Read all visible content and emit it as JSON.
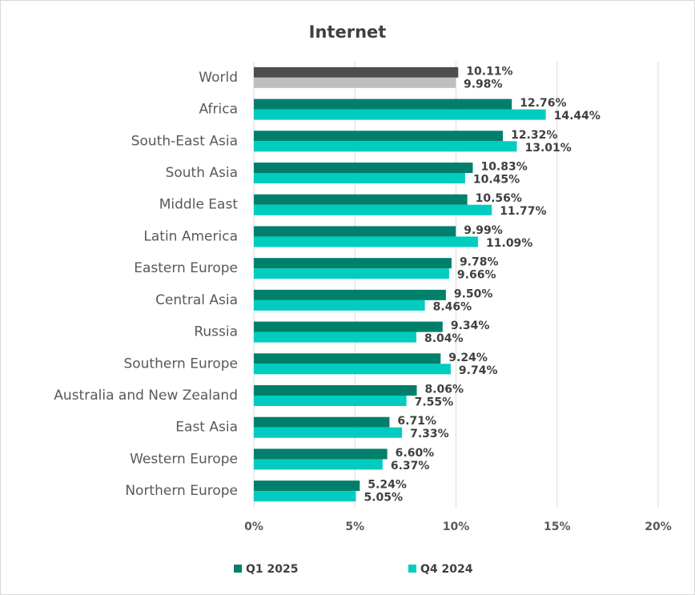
{
  "chart_data": {
    "type": "hbar",
    "title": "Internet",
    "categories": [
      "World",
      "Africa",
      "South-East Asia",
      "South Asia",
      "Middle East",
      "Latin America",
      "Eastern Europe",
      "Central Asia",
      "Russia",
      "Southern Europe",
      "Australia and New Zealand",
      "East Asia",
      "Western Europe",
      "Northern Europe"
    ],
    "series": [
      {
        "name": "Q1 2025",
        "color": "#00806b",
        "colors": [
          "#4d4d4d",
          "#00806b",
          "#00806b",
          "#00806b",
          "#00806b",
          "#00806b",
          "#00806b",
          "#00806b",
          "#00806b",
          "#00806b",
          "#00806b",
          "#00806b",
          "#00806b",
          "#00806b"
        ],
        "values": [
          10.11,
          12.76,
          12.32,
          10.83,
          10.56,
          9.99,
          9.78,
          9.5,
          9.34,
          9.24,
          8.06,
          6.71,
          6.6,
          5.24
        ],
        "value_labels": [
          "10.11%",
          "12.76%",
          "12.32%",
          "10.83%",
          "10.56%",
          "9.99%",
          "9.78%",
          "9.50%",
          "9.34%",
          "9.24%",
          "8.06%",
          "6.71%",
          "6.60%",
          "5.24%"
        ]
      },
      {
        "name": "Q4 2024",
        "color": "#00ccbf",
        "colors": [
          "#bfbfbf",
          "#00ccbf",
          "#00ccbf",
          "#00ccbf",
          "#00ccbf",
          "#00ccbf",
          "#00ccbf",
          "#00ccbf",
          "#00ccbf",
          "#00ccbf",
          "#00ccbf",
          "#00ccbf",
          "#00ccbf",
          "#00ccbf"
        ],
        "values": [
          9.98,
          14.44,
          13.01,
          10.45,
          11.77,
          11.09,
          9.66,
          8.46,
          8.04,
          9.74,
          7.55,
          7.33,
          6.37,
          5.05
        ],
        "value_labels": [
          "9.98%",
          "14.44%",
          "13.01%",
          "10.45%",
          "11.77%",
          "11.09%",
          "9.66%",
          "8.46%",
          "8.04%",
          "9.74%",
          "7.55%",
          "7.33%",
          "6.37%",
          "5.05%"
        ]
      }
    ],
    "xlim": [
      0,
      20
    ],
    "xticks": [
      {
        "value": 0,
        "label": "0%"
      },
      {
        "value": 5,
        "label": "5%"
      },
      {
        "value": 10,
        "label": "10%"
      },
      {
        "value": 15,
        "label": "15%"
      },
      {
        "value": 20,
        "label": "20%"
      }
    ],
    "grid": true,
    "legend": "bottom"
  }
}
